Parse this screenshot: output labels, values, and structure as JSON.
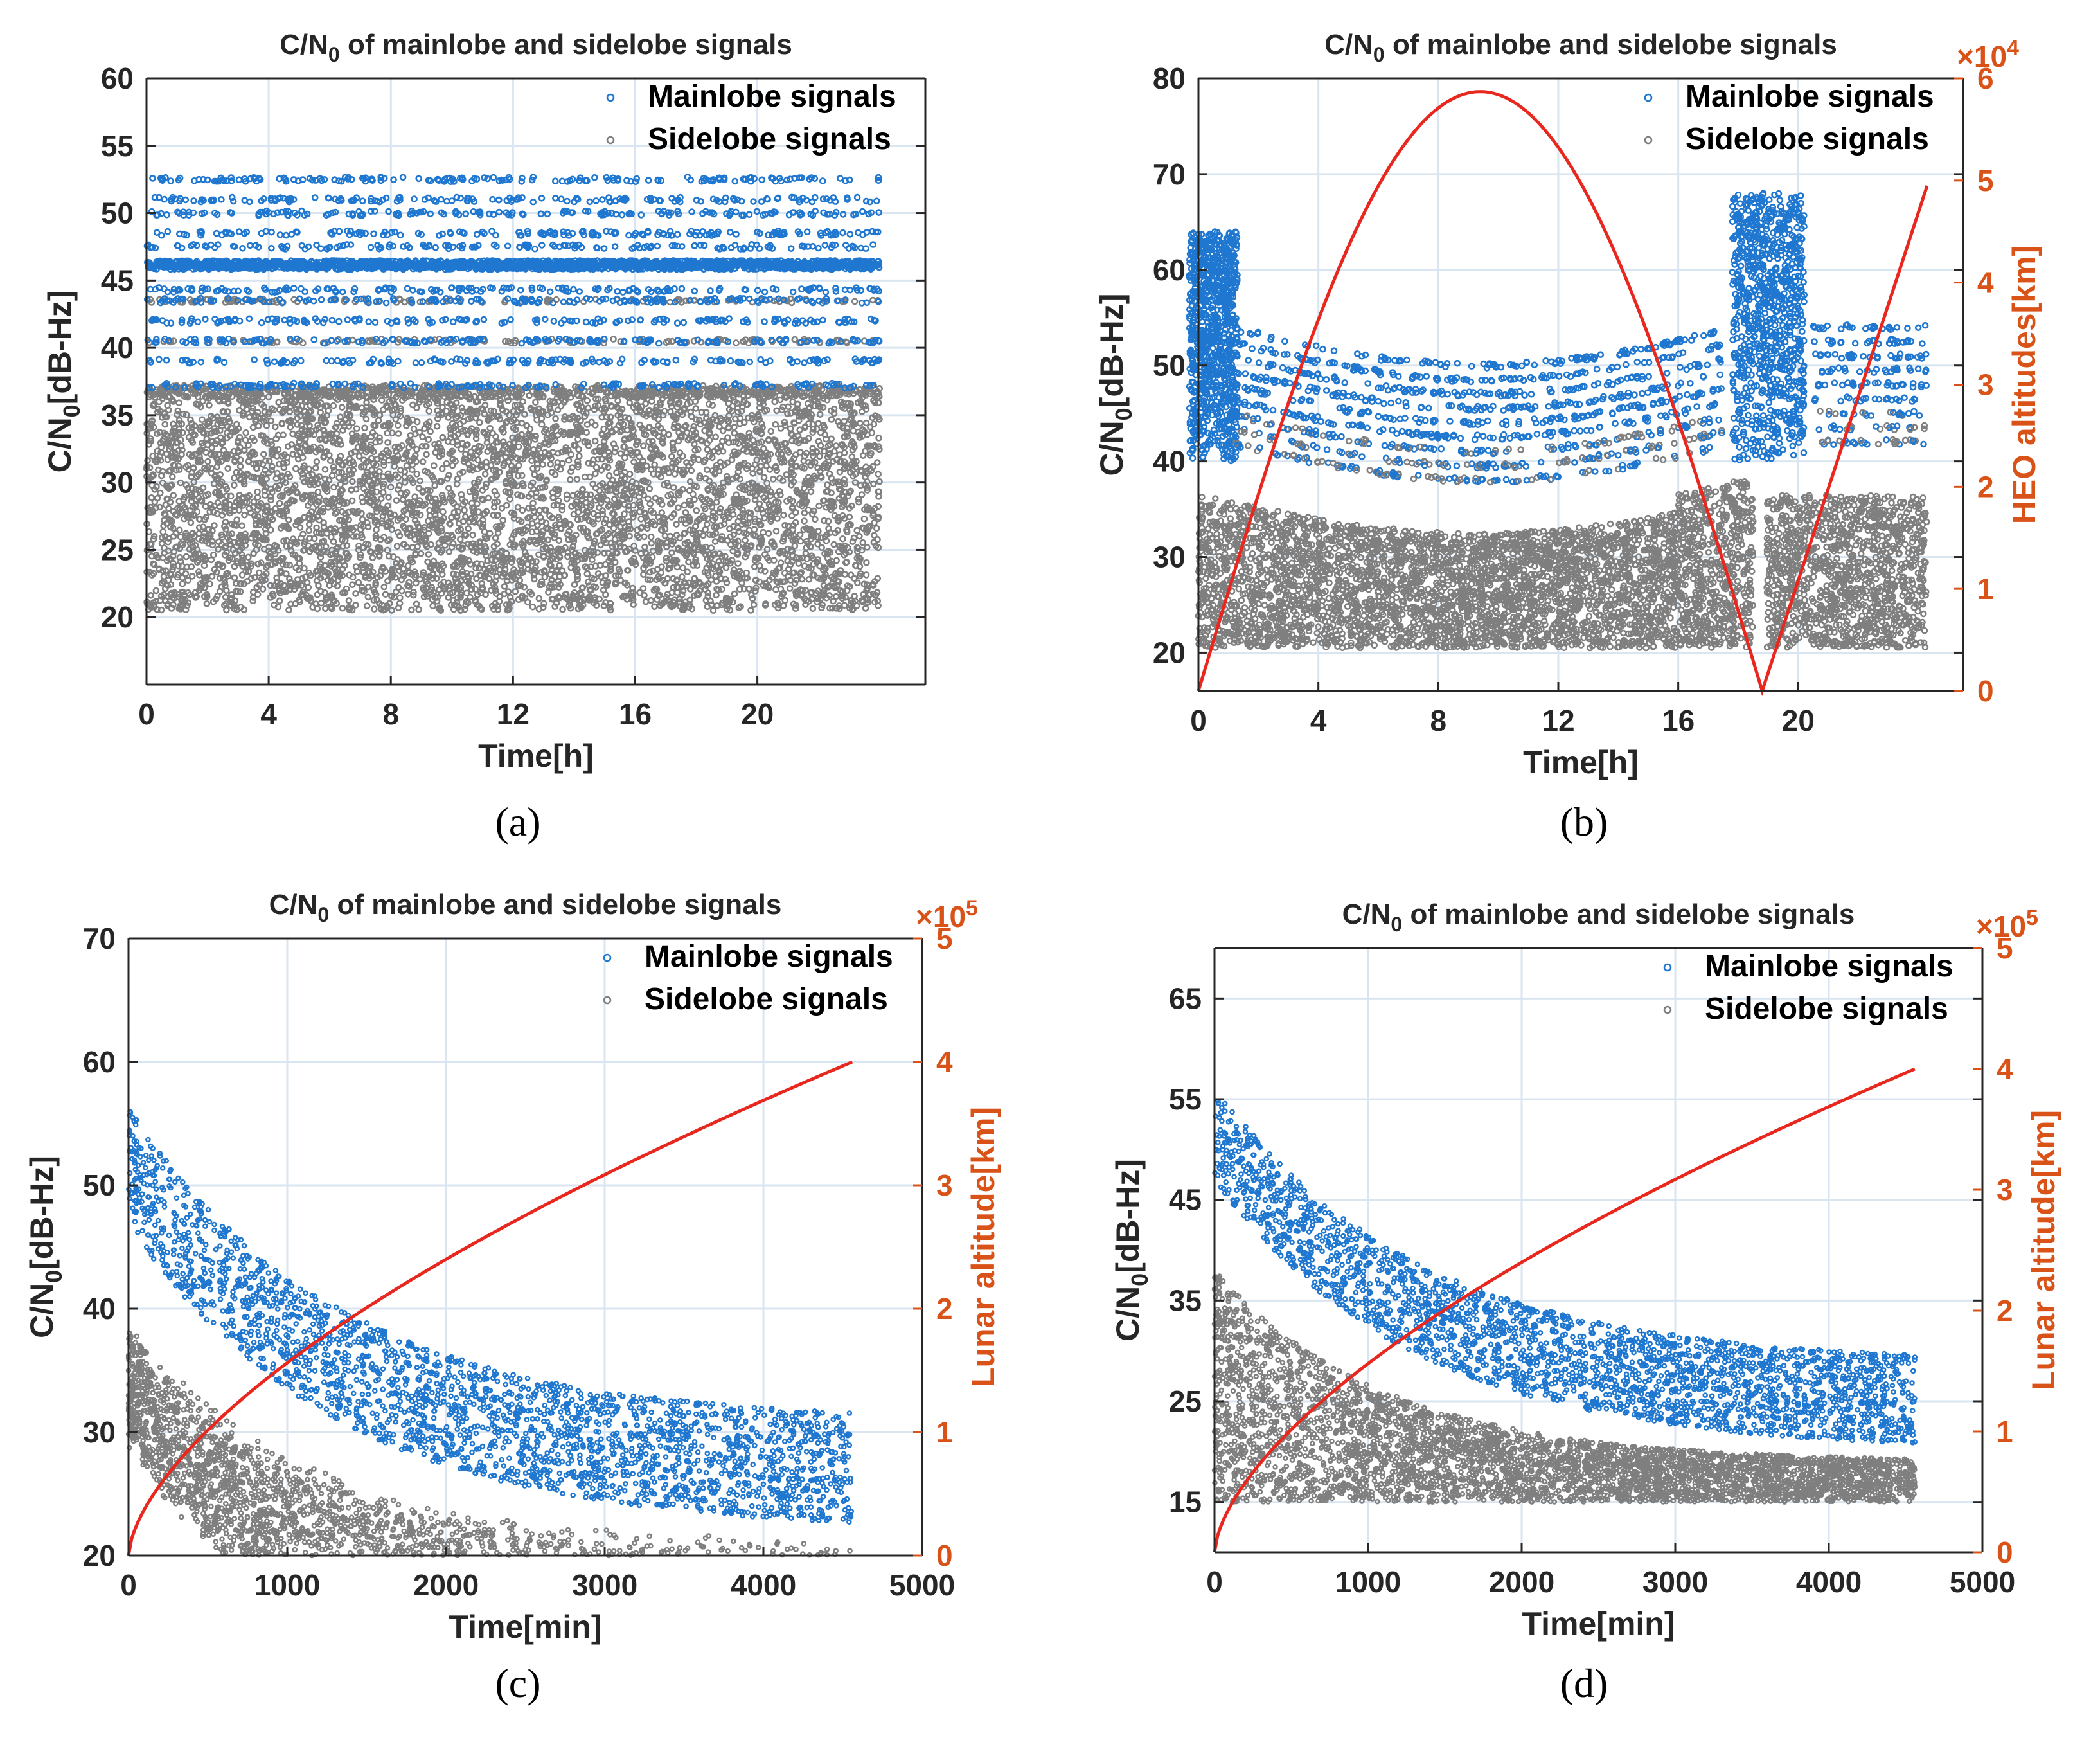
{
  "colors": {
    "mainlobe": "#1f77d0",
    "sidelobe": "#7f7f7f",
    "altitude": "#e8281f",
    "right_axis": "#d95319",
    "left_axis_blue": "#0072bd",
    "grid": "#d9e6f2",
    "axis": "#262626"
  },
  "chart_data": [
    {
      "id": "a",
      "type": "scatter",
      "caption": "(a)",
      "title_pre": "C/N",
      "title_sub": "0",
      "title_post": " of mainlobe and sidelobe signals",
      "xlabel": "Time[h]",
      "ylabel_pre": "C/N",
      "ylabel_sub": "0",
      "ylabel_post": "[dB-Hz]",
      "xlim": [
        0,
        25.5
      ],
      "ylim": [
        15,
        60
      ],
      "xticks": [
        0,
        4,
        8,
        12,
        16,
        20
      ],
      "yticks": [
        20,
        25,
        30,
        35,
        40,
        45,
        50,
        55,
        60
      ],
      "legend": [
        "Mainlobe signals",
        "Sidelobe signals"
      ],
      "series": [
        {
          "name": "Mainlobe signals",
          "x_range": [
            0,
            24
          ],
          "levels": [
            52.5,
            51,
            50,
            48.5,
            47.5,
            46.3,
            46,
            44.3,
            43.5,
            42,
            40.5,
            39,
            37.2
          ]
        },
        {
          "name": "Sidelobe signals",
          "x_range": [
            0,
            24
          ],
          "band": [
            20.5,
            37
          ]
        }
      ]
    },
    {
      "id": "b",
      "type": "scatter",
      "caption": "(b)",
      "title_pre": "C/N",
      "title_sub": "0",
      "title_post": " of mainlobe and sidelobe signals",
      "xlabel": "Time[h]",
      "ylabel_pre": "C/N",
      "ylabel_sub": "0",
      "ylabel_post": "[dB-Hz]",
      "y2label": "HEO altitudes[km]",
      "y2_exponent_base": "×10",
      "y2_exponent": "4",
      "xlim": [
        0,
        25.5
      ],
      "ylim": [
        16,
        80
      ],
      "y2lim": [
        0,
        6
      ],
      "xticks": [
        0,
        4,
        8,
        12,
        16,
        20
      ],
      "yticks": [
        20,
        30,
        40,
        50,
        60,
        70,
        80
      ],
      "y2ticks": [
        0,
        1,
        2,
        3,
        4,
        5,
        6
      ],
      "legend": [
        "Mainlobe signals",
        "Sidelobe signals"
      ],
      "altitude_curve": {
        "peak_time": 9.4,
        "peak_value": 5.87,
        "period": 18.8,
        "x_end": 24.3,
        "end_value": 4.95
      }
    },
    {
      "id": "c",
      "type": "scatter",
      "caption": "(c)",
      "title_pre": "C/N",
      "title_sub": "0",
      "title_post": " of mainlobe and sidelobe signals",
      "xlabel": "Time[min]",
      "ylabel_pre": "C/N",
      "ylabel_sub": "0",
      "ylabel_post": "[dB-Hz]",
      "y2label": "Lunar altitude[km]",
      "y2_exponent_base": "×10",
      "y2_exponent": "5",
      "xlim": [
        0,
        5000
      ],
      "ylim": [
        20,
        70
      ],
      "y2lim": [
        0,
        5
      ],
      "xticks": [
        0,
        1000,
        2000,
        3000,
        4000,
        5000
      ],
      "yticks": [
        20,
        30,
        40,
        50,
        60,
        70
      ],
      "y2ticks": [
        0,
        1,
        2,
        3,
        4,
        5
      ],
      "legend": [
        "Mainlobe signals",
        "Sidelobe signals"
      ],
      "altitude_curve": {
        "x_end": 4560,
        "end_value": 4.0
      }
    },
    {
      "id": "d",
      "type": "scatter",
      "caption": "(d)",
      "title_pre": "C/N",
      "title_sub": "0",
      "title_post": " of mainlobe and sidelobe signals",
      "xlabel": "Time[min]",
      "ylabel_pre": "C/N",
      "ylabel_sub": "0",
      "ylabel_post": "[dB-Hz]",
      "y2label": "Lunar altitude[km]",
      "y2_exponent_base": "×10",
      "y2_exponent": "5",
      "xlim": [
        0,
        5000
      ],
      "ylim": [
        10,
        70
      ],
      "y2lim": [
        0,
        5
      ],
      "xticks": [
        0,
        1000,
        2000,
        3000,
        4000,
        5000
      ],
      "yticks": [
        15,
        25,
        35,
        45,
        55,
        65
      ],
      "y2ticks": [
        0,
        1,
        2,
        3,
        4,
        5
      ],
      "legend": [
        "Mainlobe signals",
        "Sidelobe signals"
      ],
      "altitude_curve": {
        "x_end": 4560,
        "end_value": 4.0
      }
    }
  ]
}
